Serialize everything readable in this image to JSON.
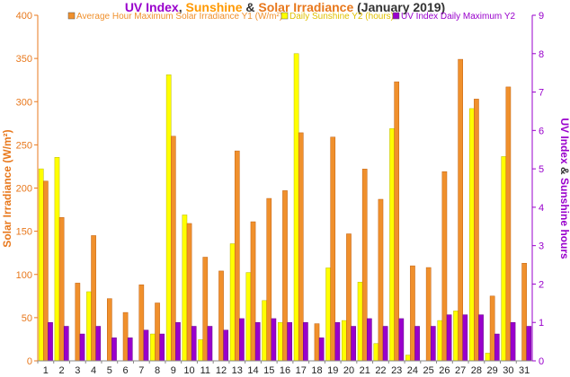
{
  "chart_data": {
    "type": "bar",
    "title_parts": [
      {
        "text": "UV Index",
        "color": "#9900cc"
      },
      {
        "text": ", ",
        "color": "#333333"
      },
      {
        "text": "Sunshine",
        "color": "#ff9900"
      },
      {
        "text": " & ",
        "color": "#333333"
      },
      {
        "text": "Solar Irradiance",
        "color": "#e8781c"
      },
      {
        "text": " (January 2019)",
        "color": "#333333"
      }
    ],
    "ylabel_left": "Solar Irradiance (W/m²)",
    "ylabel_right_parts": [
      {
        "text": "UV Index",
        "color": "#9900cc"
      },
      {
        "text": " & ",
        "color": "#333333"
      },
      {
        "text": "Sunshine hours",
        "color": "#9900cc"
      }
    ],
    "ylim_left": [
      0,
      400
    ],
    "ylim_right": [
      0,
      9
    ],
    "yticks_left": [
      "0",
      "50",
      "100",
      "150",
      "200",
      "250",
      "300",
      "350",
      "400"
    ],
    "yticks_right": [
      "0",
      "1",
      "2",
      "3",
      "4",
      "5",
      "6",
      "7",
      "8",
      "9"
    ],
    "categories": [
      "1",
      "2",
      "3",
      "4",
      "5",
      "6",
      "7",
      "8",
      "9",
      "10",
      "11",
      "12",
      "13",
      "14",
      "15",
      "16",
      "17",
      "18",
      "19",
      "20",
      "21",
      "22",
      "23",
      "24",
      "25",
      "26",
      "27",
      "28",
      "29",
      "30",
      "31"
    ],
    "grid": false,
    "legend_position": "top",
    "series": [
      {
        "name": "Average Hour Maximum Solar Irradiance Y1 (W/m²)",
        "axis": "left",
        "color": "#f0902c",
        "values": [
          208,
          166,
          90,
          145,
          72,
          56,
          88,
          67,
          260,
          159,
          120,
          104,
          243,
          161,
          188,
          197,
          264,
          43,
          259,
          147,
          222,
          187,
          323,
          110,
          108,
          219,
          349,
          303,
          75,
          317,
          113
        ]
      },
      {
        "name": "Daily Sunshine Y2 (hours)",
        "axis": "right",
        "color": "#ffff00",
        "values": [
          5.0,
          5.3,
          0,
          1.8,
          0,
          0,
          0,
          0.7,
          7.45,
          3.8,
          0.55,
          0,
          3.05,
          2.3,
          1.57,
          1.0,
          8.0,
          0,
          2.42,
          1.05,
          2.05,
          0.45,
          6.05,
          0.15,
          0,
          1.05,
          1.3,
          6.57,
          0.2,
          5.32,
          0
        ]
      },
      {
        "name": "UV Index Daily Maximum Y2",
        "axis": "right",
        "color": "#9900cc",
        "values": [
          1,
          0.9,
          0.7,
          0.9,
          0.6,
          0.6,
          0.8,
          0.7,
          1,
          0.9,
          0.9,
          0.8,
          1.1,
          1,
          1.1,
          1,
          1,
          0.6,
          1,
          0.9,
          1.1,
          0.9,
          1.1,
          0.9,
          0.9,
          1.2,
          1.2,
          1.2,
          0.7,
          1,
          0.9
        ]
      }
    ]
  }
}
